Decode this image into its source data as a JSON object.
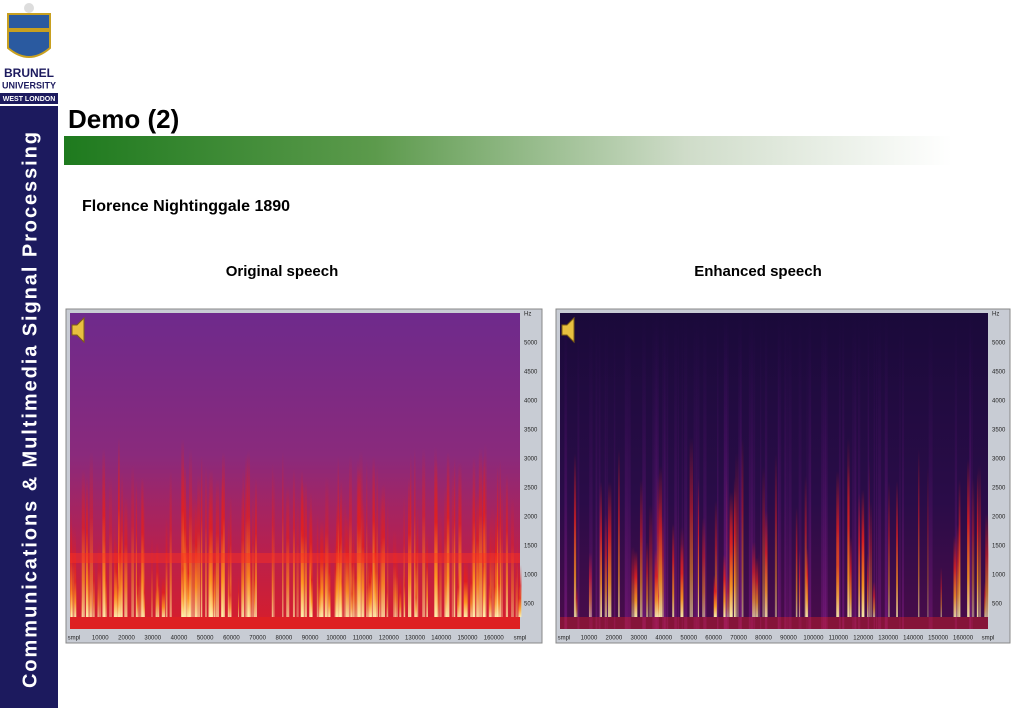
{
  "sidebar": {
    "logo": {
      "name": "BRUNEL",
      "sub": "UNIVERSITY",
      "place": "WEST LONDON"
    },
    "vertical_title": "Communications & Multimedia Signal Processing"
  },
  "header": {
    "title": "Demo (2)"
  },
  "subtitle": "Florence Nightinggale 1890",
  "panels": [
    {
      "caption": "Original speech",
      "y_labels": [
        "Hz",
        "5000",
        "4500",
        "4000",
        "3500",
        "3000",
        "2500",
        "2000",
        "1500",
        "1000",
        "500"
      ],
      "x_labels": [
        "smpl",
        "10000",
        "20000",
        "30000",
        "40000",
        "50000",
        "60000",
        "70000",
        "80000",
        "90000",
        "100000",
        "110000",
        "120000",
        "130000",
        "140000",
        "150000",
        "160000",
        "smpl"
      ]
    },
    {
      "caption": "Enhanced speech",
      "y_labels": [
        "Hz",
        "5000",
        "4500",
        "4000",
        "3500",
        "3000",
        "2500",
        "2000",
        "1500",
        "1000",
        "500"
      ],
      "x_labels": [
        "smpl",
        "10000",
        "20000",
        "30000",
        "40000",
        "50000",
        "60000",
        "70000",
        "80000",
        "90000",
        "100000",
        "110000",
        "120000",
        "130000",
        "140000",
        "150000",
        "160000",
        "smpl"
      ]
    }
  ]
}
